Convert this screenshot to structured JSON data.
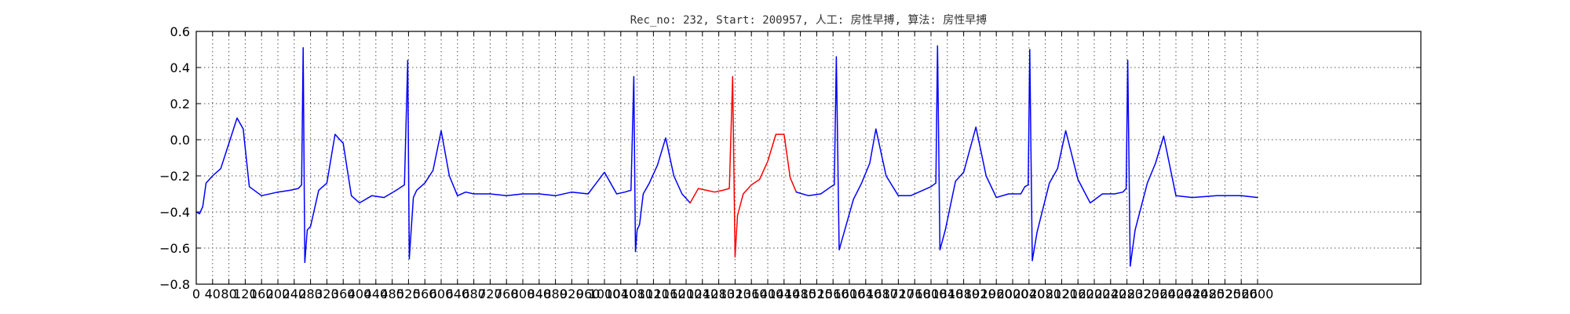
{
  "chart_data": {
    "type": "line",
    "title": "Rec_no: 232, Start: 200957, 人工: 房性早搏, 算法: 房性早搏",
    "xlabel": "",
    "ylabel": "",
    "ylim": [
      -0.8,
      0.6
    ],
    "xlim": [
      0,
      3000
    ],
    "yticks": [
      "−0.8",
      "−0.6",
      "−0.4",
      "−0.2",
      "0.0",
      "0.2",
      "0.4",
      "0.6"
    ],
    "ytick_values": [
      -0.8,
      -0.6,
      -0.4,
      -0.2,
      0.0,
      0.2,
      0.4,
      0.6
    ],
    "xticks": [
      "0",
      "40",
      "80",
      "120",
      "160",
      "200",
      "240",
      "280",
      "320",
      "360",
      "400",
      "440",
      "480",
      "520",
      "560",
      "600",
      "640",
      "680",
      "720",
      "760",
      "800",
      "840",
      "880",
      "920",
      "960",
      "1000",
      "1040",
      "1080",
      "1120",
      "1160",
      "1200",
      "1240",
      "1280",
      "1320",
      "1360",
      "1400",
      "1440",
      "1480",
      "1520",
      "1560",
      "1600",
      "1640",
      "1680",
      "1720",
      "1760",
      "1800",
      "1840",
      "1880",
      "1920",
      "1960",
      "2000",
      "2040",
      "2080",
      "2120",
      "2160",
      "2200",
      "2240",
      "2280",
      "2320",
      "2360",
      "2400",
      "2440",
      "2480",
      "2520",
      "2560",
      "2600"
    ],
    "grid": true,
    "series": [
      {
        "color": "#0000ff",
        "segment": "before",
        "x": [
          0,
          8,
          16,
          24,
          40,
          60,
          80,
          100,
          115,
          130,
          160,
          200,
          230,
          250,
          258,
          262,
          266,
          272,
          280,
          300,
          320,
          340,
          360,
          380,
          400,
          430,
          460,
          490,
          510,
          518,
          522,
          526,
          532,
          540,
          560,
          580,
          600,
          620,
          640,
          660,
          680,
          720,
          760,
          800,
          840,
          880,
          920,
          960,
          1000,
          1030,
          1050,
          1065,
          1072,
          1076,
          1080,
          1086,
          1095,
          1110,
          1130,
          1150,
          1170,
          1190,
          1210
        ],
        "y": [
          -0.4,
          -0.41,
          -0.37,
          -0.24,
          -0.2,
          -0.16,
          -0.02,
          0.12,
          0.06,
          -0.26,
          -0.31,
          -0.29,
          -0.28,
          -0.27,
          -0.25,
          0.51,
          -0.68,
          -0.5,
          -0.48,
          -0.28,
          -0.24,
          0.03,
          -0.02,
          -0.31,
          -0.35,
          -0.31,
          -0.32,
          -0.28,
          -0.25,
          0.44,
          -0.66,
          -0.52,
          -0.32,
          -0.28,
          -0.24,
          -0.17,
          0.05,
          -0.2,
          -0.31,
          -0.29,
          -0.3,
          -0.3,
          -0.31,
          -0.3,
          -0.3,
          -0.31,
          -0.29,
          -0.3,
          -0.18,
          -0.3,
          -0.29,
          -0.28,
          0.35,
          -0.62,
          -0.5,
          -0.47,
          -0.3,
          -0.24,
          -0.14,
          0.01,
          -0.2,
          -0.3,
          -0.35
        ]
      },
      {
        "color": "#ff0000",
        "segment": "annotated",
        "x": [
          1210,
          1230,
          1250,
          1270,
          1290,
          1306,
          1314,
          1320,
          1326,
          1340,
          1360,
          1380,
          1400,
          1420,
          1440,
          1455,
          1470
        ],
        "y": [
          -0.35,
          -0.27,
          -0.28,
          -0.29,
          -0.28,
          -0.27,
          0.35,
          -0.65,
          -0.42,
          -0.3,
          -0.25,
          -0.22,
          -0.12,
          0.03,
          0.03,
          -0.21,
          -0.29
        ]
      },
      {
        "color": "#0000ff",
        "segment": "after",
        "x": [
          1470,
          1500,
          1530,
          1555,
          1563,
          1568,
          1575,
          1590,
          1610,
          1630,
          1650,
          1665,
          1690,
          1720,
          1750,
          1780,
          1800,
          1812,
          1816,
          1822,
          1835,
          1860,
          1880,
          1910,
          1935,
          1960,
          1990,
          2020,
          2030,
          2038,
          2042,
          2048,
          2060,
          2090,
          2110,
          2130,
          2160,
          2190,
          2220,
          2250,
          2270,
          2278,
          2282,
          2288,
          2300,
          2330,
          2350,
          2370,
          2400,
          2440,
          2500,
          2560,
          2600
        ],
        "y": [
          -0.29,
          -0.31,
          -0.3,
          -0.26,
          -0.25,
          0.46,
          -0.61,
          -0.49,
          -0.33,
          -0.24,
          -0.13,
          0.06,
          -0.2,
          -0.31,
          -0.31,
          -0.28,
          -0.26,
          -0.24,
          0.52,
          -0.61,
          -0.5,
          -0.23,
          -0.18,
          0.07,
          -0.2,
          -0.32,
          -0.3,
          -0.3,
          -0.26,
          -0.25,
          0.5,
          -0.67,
          -0.51,
          -0.24,
          -0.16,
          0.05,
          -0.22,
          -0.35,
          -0.3,
          -0.3,
          -0.29,
          -0.27,
          0.44,
          -0.7,
          -0.5,
          -0.24,
          -0.13,
          0.02,
          -0.31,
          -0.32,
          -0.31,
          -0.31,
          -0.32
        ]
      }
    ]
  }
}
